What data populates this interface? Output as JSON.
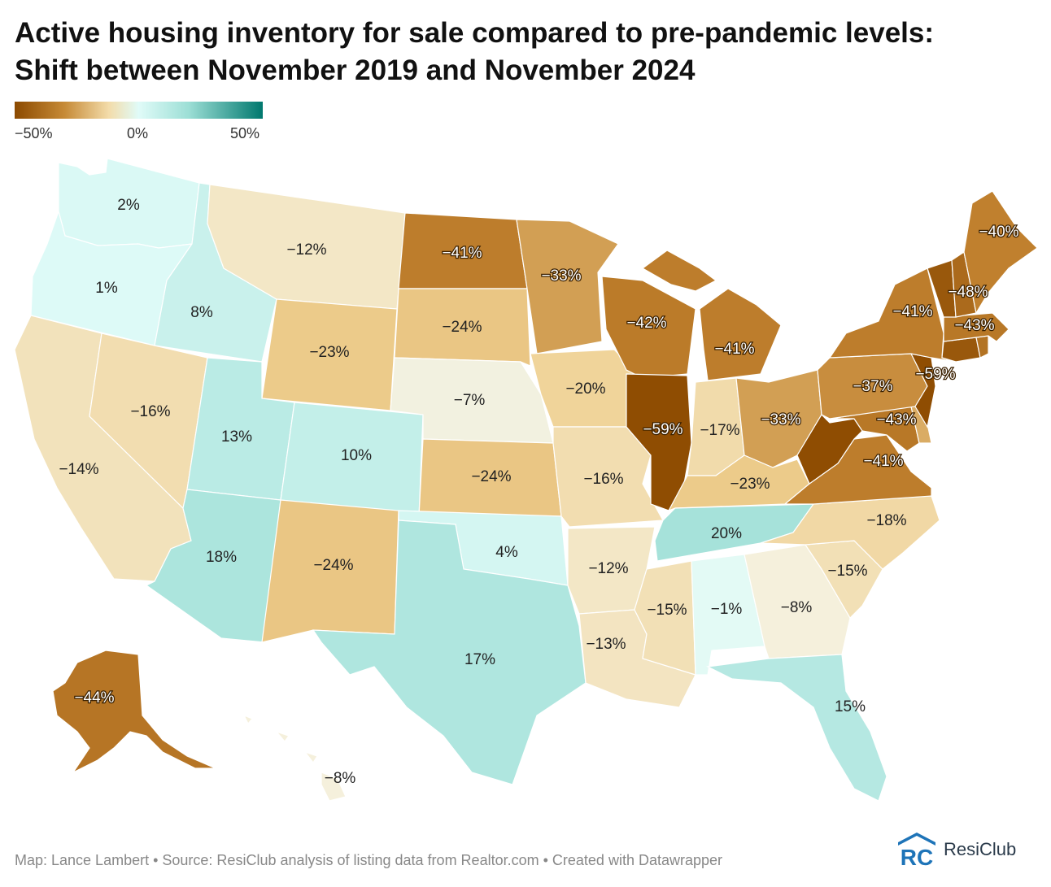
{
  "title_line1": "Active housing inventory for sale compared to pre-pandemic levels:",
  "title_line2": "Shift between November 2019 and November 2024",
  "legend": {
    "ticks": [
      "−50%",
      "0%",
      "50%"
    ],
    "colors": {
      "neg": "#8c4a00",
      "mid": "#e0fbf8",
      "pos": "#00786e"
    }
  },
  "states": [
    {
      "abbr": "WA",
      "value": 2,
      "label": "2%"
    },
    {
      "abbr": "OR",
      "value": 1,
      "label": "1%"
    },
    {
      "abbr": "CA",
      "value": -14,
      "label": "−14%"
    },
    {
      "abbr": "NV",
      "value": -16,
      "label": "−16%"
    },
    {
      "abbr": "ID",
      "value": 8,
      "label": "8%"
    },
    {
      "abbr": "MT",
      "value": -12,
      "label": "−12%"
    },
    {
      "abbr": "WY",
      "value": -23,
      "label": "−23%"
    },
    {
      "abbr": "UT",
      "value": 13,
      "label": "13%"
    },
    {
      "abbr": "AZ",
      "value": 18,
      "label": "18%"
    },
    {
      "abbr": "CO",
      "value": 10,
      "label": "10%"
    },
    {
      "abbr": "NM",
      "value": -24,
      "label": "−24%"
    },
    {
      "abbr": "ND",
      "value": -41,
      "label": "−41%"
    },
    {
      "abbr": "SD",
      "value": -24,
      "label": "−24%"
    },
    {
      "abbr": "NE",
      "value": -7,
      "label": "−7%"
    },
    {
      "abbr": "KS",
      "value": -24,
      "label": "−24%"
    },
    {
      "abbr": "OK",
      "value": 4,
      "label": "4%"
    },
    {
      "abbr": "TX",
      "value": 17,
      "label": "17%"
    },
    {
      "abbr": "MN",
      "value": -33,
      "label": "−33%"
    },
    {
      "abbr": "IA",
      "value": -20,
      "label": "−20%"
    },
    {
      "abbr": "MO",
      "value": -16,
      "label": "−16%"
    },
    {
      "abbr": "AR",
      "value": -12,
      "label": "−12%"
    },
    {
      "abbr": "LA",
      "value": -13,
      "label": "−13%"
    },
    {
      "abbr": "WI",
      "value": -42,
      "label": "−42%"
    },
    {
      "abbr": "IL",
      "value": -59,
      "label": "−59%"
    },
    {
      "abbr": "MI",
      "value": -41,
      "label": "−41%"
    },
    {
      "abbr": "IN",
      "value": -17,
      "label": "−17%"
    },
    {
      "abbr": "OH",
      "value": -33,
      "label": "−33%"
    },
    {
      "abbr": "KY",
      "value": -23,
      "label": "−23%"
    },
    {
      "abbr": "TN",
      "value": 20,
      "label": "20%"
    },
    {
      "abbr": "MS",
      "value": -15,
      "label": "−15%"
    },
    {
      "abbr": "AL",
      "value": -1,
      "label": "−1%"
    },
    {
      "abbr": "GA",
      "value": -8,
      "label": "−8%"
    },
    {
      "abbr": "FL",
      "value": 15,
      "label": "15%"
    },
    {
      "abbr": "SC",
      "value": -15,
      "label": "−15%"
    },
    {
      "abbr": "NC",
      "value": -18,
      "label": "−18%"
    },
    {
      "abbr": "VA",
      "value": -41,
      "label": "−41%"
    },
    {
      "abbr": "WV",
      "value": -59,
      "label": ""
    },
    {
      "abbr": "MD",
      "value": -43,
      "label": "−43%"
    },
    {
      "abbr": "DE",
      "value": -30,
      "label": ""
    },
    {
      "abbr": "PA",
      "value": -37,
      "label": "−37%"
    },
    {
      "abbr": "NJ",
      "value": -59,
      "label": "−59%"
    },
    {
      "abbr": "NY",
      "value": -41,
      "label": "−41%"
    },
    {
      "abbr": "CT",
      "value": -55,
      "label": ""
    },
    {
      "abbr": "RI",
      "value": -45,
      "label": ""
    },
    {
      "abbr": "MA",
      "value": -43,
      "label": "−43%"
    },
    {
      "abbr": "VT",
      "value": -55,
      "label": ""
    },
    {
      "abbr": "NH",
      "value": -48,
      "label": "−48%"
    },
    {
      "abbr": "ME",
      "value": -40,
      "label": "−40%"
    },
    {
      "abbr": "AK",
      "value": -44,
      "label": "−44%"
    },
    {
      "abbr": "HI",
      "value": -8,
      "label": "−8%"
    }
  ],
  "footer": "Map: Lance Lambert • Source: ResiClub analysis of listing data from Realtor.com • Created with Datawrapper",
  "logo_text": "ResiClub",
  "logo_mark_text": "RC"
}
